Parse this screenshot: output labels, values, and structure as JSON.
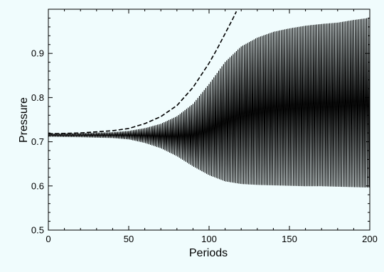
{
  "chart_data": {
    "type": "line",
    "title": "",
    "xlabel": "Periods",
    "ylabel": "Pressure",
    "xlim": [
      0,
      200
    ],
    "ylim": [
      0.5,
      1.0
    ],
    "x_ticks": [
      0,
      50,
      100,
      150,
      200
    ],
    "x_tick_labels": [
      "0",
      "50",
      "100",
      "150",
      "200"
    ],
    "y_ticks": [
      0.5,
      0.6,
      0.7,
      0.8,
      0.9
    ],
    "y_tick_labels": [
      "0.5",
      "0.6",
      "0.7",
      "0.8",
      "0.9"
    ],
    "grid": false,
    "legend": "none",
    "background_color": "#f0fcfd",
    "line_color": "#000000",
    "series": [
      {
        "style": "solid",
        "description_type": "oscillation_envelope",
        "x": [
          0,
          20,
          40,
          50,
          60,
          70,
          80,
          90,
          100,
          110,
          120,
          130,
          140,
          150,
          160,
          170,
          180,
          190,
          200
        ],
        "upper": [
          0.718,
          0.719,
          0.721,
          0.724,
          0.73,
          0.74,
          0.757,
          0.785,
          0.83,
          0.88,
          0.915,
          0.935,
          0.948,
          0.956,
          0.962,
          0.966,
          0.969,
          0.975,
          0.98
        ],
        "lower": [
          0.712,
          0.711,
          0.709,
          0.706,
          0.698,
          0.686,
          0.668,
          0.645,
          0.625,
          0.611,
          0.605,
          0.603,
          0.602,
          0.601,
          0.6,
          0.6,
          0.599,
          0.598,
          0.597
        ]
      },
      {
        "style": "dashed",
        "x": [
          0,
          20,
          40,
          50,
          60,
          70,
          80,
          90,
          100,
          105,
          110,
          115,
          117
        ],
        "values": [
          0.718,
          0.72,
          0.725,
          0.73,
          0.741,
          0.757,
          0.782,
          0.823,
          0.878,
          0.91,
          0.945,
          0.98,
          0.995
        ]
      }
    ]
  }
}
